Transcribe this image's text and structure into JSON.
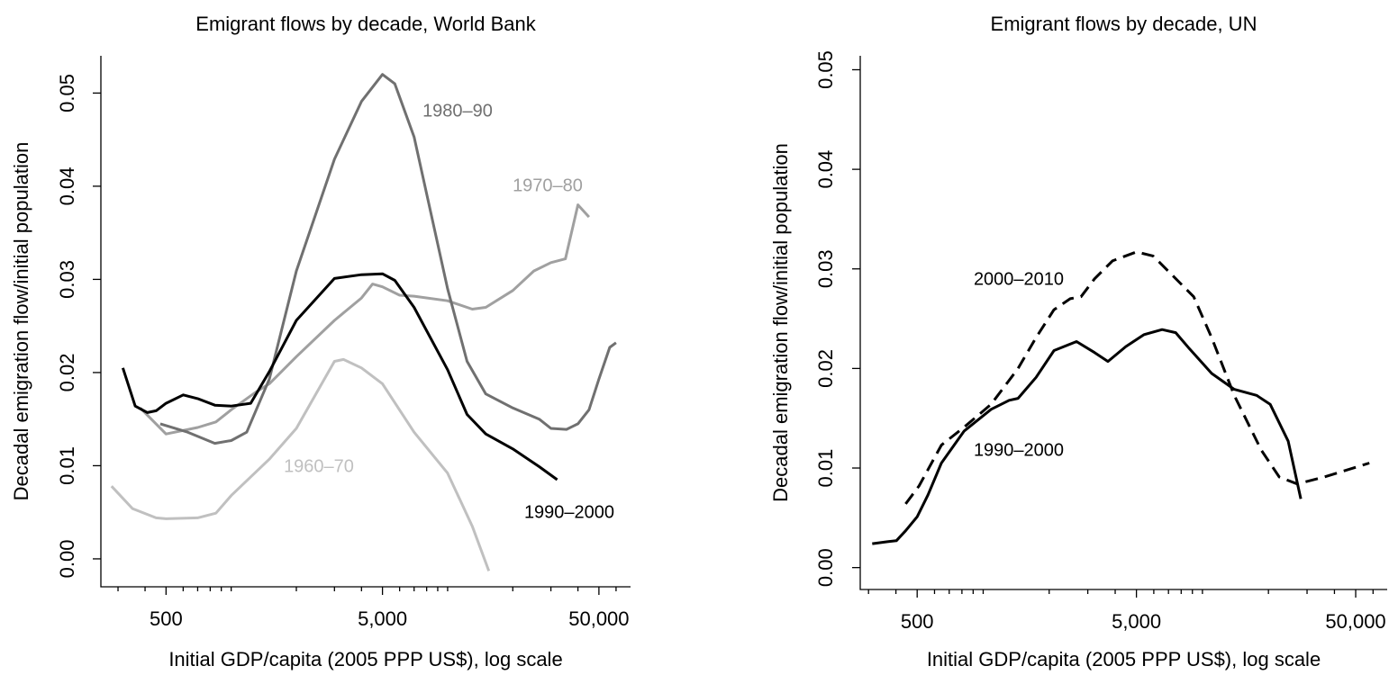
{
  "chart_data": [
    {
      "type": "line",
      "title": "Emigrant flows by decade, World Bank",
      "xlabel": "Initial GDP/capita (2005 PPP US$), log scale",
      "ylabel": "Decadal emigration flow/initial population",
      "xscale": "log",
      "xlim": [
        250,
        70000
      ],
      "ylim": [
        -0.003,
        0.054
      ],
      "xticks": [
        500,
        {
          "value": 5000,
          "label": "5,000"
        },
        {
          "value": 50000,
          "label": "50,000"
        }
      ],
      "xminorticks": [
        300,
        400,
        600,
        700,
        800,
        900,
        1000,
        2000,
        3000,
        4000,
        6000,
        7000,
        8000,
        9000,
        10000,
        20000,
        30000,
        40000,
        60000
      ],
      "yticks": [
        {
          "value": 0,
          "label": "0.00"
        },
        0.01,
        0.02,
        0.03,
        0.04,
        0.05
      ],
      "series": [
        {
          "name": "1960–70",
          "color": "#c0c0c0",
          "line_style": "solid",
          "x": [
            280,
            350,
            450,
            500,
            700,
            850,
            1000,
            1500,
            2000,
            3000,
            3300,
            4000,
            5000,
            7000,
            10000,
            13000,
            15500
          ],
          "values": [
            0.0078,
            0.0054,
            0.0044,
            0.0043,
            0.0044,
            0.0049,
            0.0068,
            0.0107,
            0.014,
            0.0212,
            0.0214,
            0.0205,
            0.0188,
            0.0136,
            0.0092,
            0.0035,
            -0.0013
          ]
        },
        {
          "name": "1970–80",
          "color": "#a0a0a0",
          "line_style": "solid",
          "x": [
            380,
            500,
            700,
            850,
            1000,
            1300,
            1500,
            2000,
            3000,
            4000,
            4500,
            5000,
            6000,
            7000,
            10000,
            13000,
            15000,
            20000,
            25000,
            30000,
            35000,
            40000,
            45000
          ],
          "values": [
            0.0162,
            0.0134,
            0.0141,
            0.0147,
            0.016,
            0.0179,
            0.0188,
            0.0217,
            0.0256,
            0.028,
            0.0295,
            0.0292,
            0.0283,
            0.0282,
            0.0277,
            0.0268,
            0.027,
            0.0288,
            0.0309,
            0.0318,
            0.0322,
            0.038,
            0.0367
          ]
        },
        {
          "name": "1980–90",
          "color": "#707070",
          "line_style": "solid",
          "x": [
            470,
            630,
            840,
            1000,
            1180,
            1500,
            2000,
            3000,
            4000,
            5000,
            5700,
            7000,
            10000,
            12300,
            15000,
            20000,
            26500,
            30000,
            35400,
            40000,
            45000,
            50000,
            56100,
            60000
          ],
          "values": [
            0.0145,
            0.0136,
            0.0124,
            0.0127,
            0.0136,
            0.0193,
            0.0309,
            0.0429,
            0.0491,
            0.052,
            0.051,
            0.0453,
            0.029,
            0.0212,
            0.0177,
            0.0162,
            0.015,
            0.014,
            0.0139,
            0.0145,
            0.016,
            0.0193,
            0.0227,
            0.0232
          ]
        },
        {
          "name": "1990–2000",
          "color": "#000000",
          "line_style": "solid",
          "x": [
            316,
            360,
            410,
            450,
            500,
            600,
            700,
            840,
            1000,
            1230,
            1500,
            2000,
            3000,
            4000,
            5000,
            5700,
            7000,
            10000,
            12300,
            15000,
            20000,
            26500,
            32100
          ],
          "values": [
            0.0205,
            0.0164,
            0.0157,
            0.0159,
            0.0167,
            0.0176,
            0.0172,
            0.0165,
            0.0164,
            0.0167,
            0.0201,
            0.0256,
            0.0301,
            0.0305,
            0.0306,
            0.0299,
            0.027,
            0.0203,
            0.0155,
            0.0134,
            0.0118,
            0.0099,
            0.0085
          ]
        }
      ]
    },
    {
      "type": "line",
      "title": "Emigrant flows by decade, UN",
      "xlabel": "Initial GDP/capita (2005 PPP US$), log scale",
      "ylabel": "Decadal emigration flow/initial population",
      "xscale": "log",
      "xlim": [
        275,
        69600
      ],
      "ylim": [
        -0.0022,
        0.0514
      ],
      "xticks": [
        500,
        {
          "value": 5000,
          "label": "5,000"
        },
        {
          "value": 50000,
          "label": "50,000"
        }
      ],
      "xminorticks": [
        300,
        400,
        600,
        700,
        800,
        900,
        1000,
        2000,
        3000,
        4000,
        6000,
        7000,
        8000,
        9000,
        10000,
        20000,
        30000,
        40000,
        60000
      ],
      "yticks": [
        {
          "value": 0,
          "label": "0.00"
        },
        0.01,
        0.02,
        0.03,
        0.04,
        0.05
      ],
      "series": [
        {
          "name": "2000–2010",
          "color": "#000000",
          "line_style": "dashed",
          "x": [
            443,
            510,
            645,
            818,
            1087,
            1443,
            1742,
            2104,
            2494,
            2793,
            3219,
            3887,
            5000,
            5958,
            7191,
            9120,
            11010,
            13960,
            18540,
            22400,
            27050,
            35900,
            57700
          ],
          "values": [
            0.0064,
            0.0082,
            0.0123,
            0.0141,
            0.0164,
            0.02,
            0.0231,
            0.0259,
            0.027,
            0.0272,
            0.029,
            0.0308,
            0.0317,
            0.0313,
            0.0295,
            0.0272,
            0.0231,
            0.0173,
            0.0118,
            0.0091,
            0.0084,
            0.0091,
            0.0105
          ]
        },
        {
          "name": "1990–2000",
          "color": "#000000",
          "line_style": "solid",
          "x": [
            312,
            366,
            402,
            443,
            500,
            560,
            645,
            818,
            1087,
            1313,
            1443,
            1742,
            2104,
            2666,
            3219,
            3706,
            4470,
            5420,
            6545,
            7550,
            8710,
            11010,
            13960,
            17660,
            20370,
            24600,
            28100
          ],
          "values": [
            0.0024,
            0.0026,
            0.0027,
            0.0037,
            0.0051,
            0.0073,
            0.0105,
            0.0137,
            0.0159,
            0.0168,
            0.017,
            0.0191,
            0.0218,
            0.0227,
            0.0216,
            0.0207,
            0.0222,
            0.0234,
            0.0239,
            0.0236,
            0.022,
            0.0195,
            0.0179,
            0.0173,
            0.0164,
            0.0127,
            0.0069
          ]
        }
      ]
    }
  ]
}
